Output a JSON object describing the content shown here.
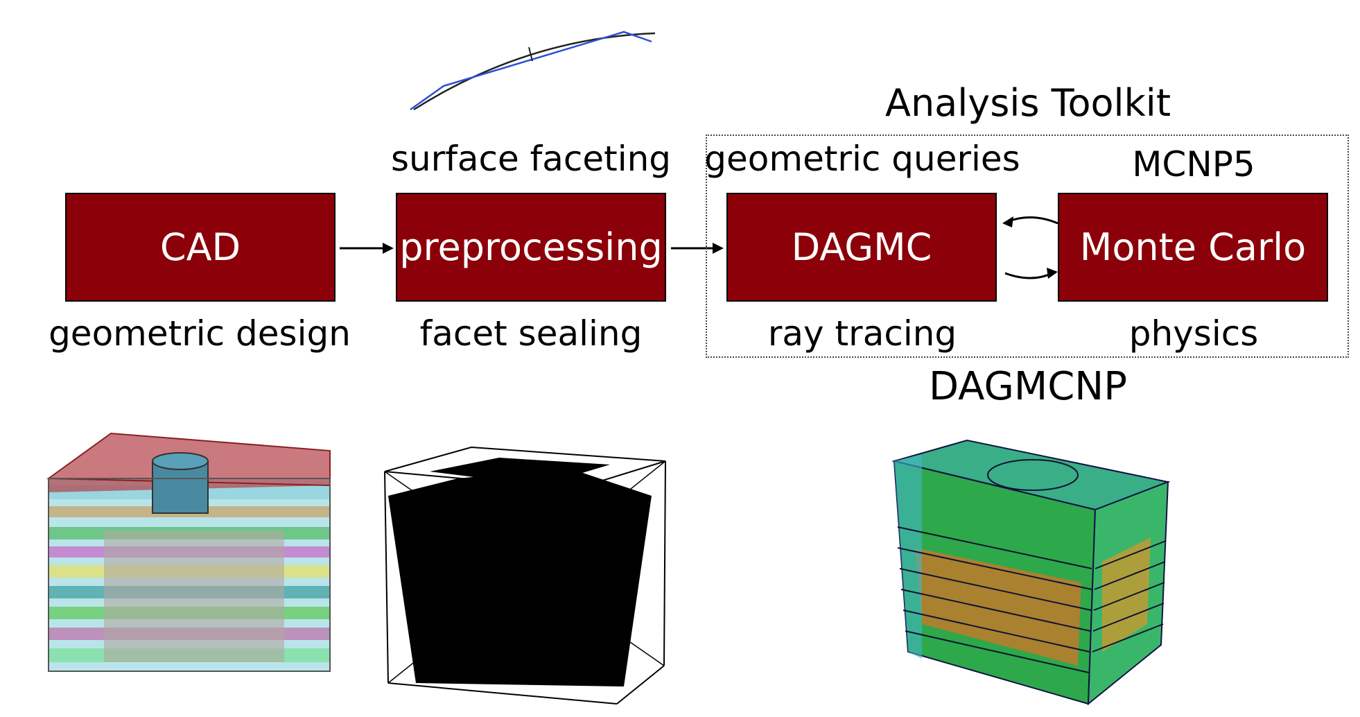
{
  "diagram": {
    "stages": [
      {
        "box": "CAD",
        "above": "",
        "below": "geometric design"
      },
      {
        "box": "preprocessing",
        "above": "surface faceting",
        "below": "facet sealing"
      },
      {
        "box": "DAGMC",
        "above": "geometric queries",
        "below": "ray tracing"
      },
      {
        "box": "Monte Carlo",
        "above": "MCNP5",
        "below": "physics"
      }
    ],
    "toolkit_title": "Analysis Toolkit",
    "combined_label": "DAGMCNP"
  },
  "colors": {
    "box_fill": "#8b0009",
    "facet_line": "#2a4fd6"
  },
  "images": [
    "cad-model-render",
    "faceted-mesh-render",
    "dagmcnp-result-render"
  ]
}
